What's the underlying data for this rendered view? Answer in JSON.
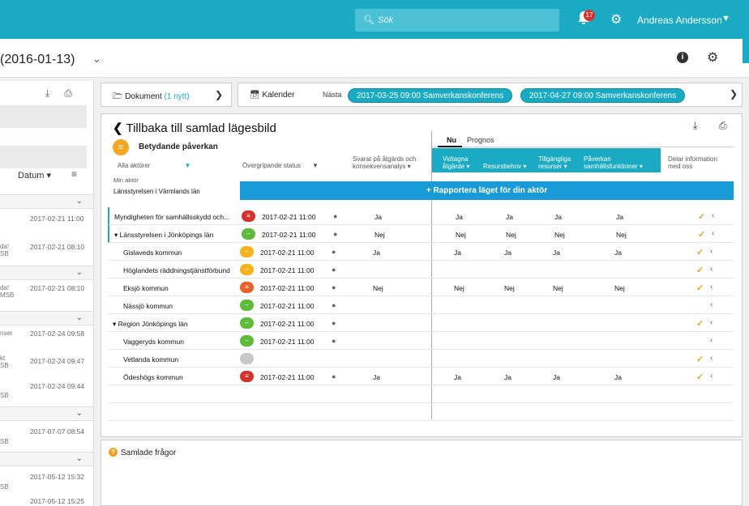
{
  "topbar": {
    "search_placeholder": "Sök",
    "notif_count": "17",
    "user": "Andreas Andersson"
  },
  "title": {
    "text": "(2016-01-13)"
  },
  "left": {
    "sort_label": "Datum ▾",
    "items": [
      {
        "left": "",
        "date": "2017-02-21 11:00",
        "sub": ""
      },
      {
        "left": "da!",
        "date": "2017-02-21 08:10",
        "sub": "SB"
      },
      {
        "left": "da!",
        "date": "2017-02-21 08:10",
        "sub": "MSB"
      },
      {
        "left": "nser",
        "date": "2017-02-24 09:58",
        "sub": ""
      },
      {
        "left": "kt",
        "date": "2017-02-24 09:47",
        "sub": "SB"
      },
      {
        "left": "",
        "date": "2017-02-24 09:44",
        "sub": "SB"
      },
      {
        "left": "",
        "date": "2017-07-07 08:54",
        "sub": "SB"
      },
      {
        "left": "",
        "date": "2017-05-12 15:32",
        "sub": "SB"
      },
      {
        "left": "",
        "date": "2017-05-12 15:25",
        "sub": ""
      }
    ]
  },
  "cards": {
    "dokument": "Dokument",
    "dokument_new": "(1 nytt)",
    "kalender": "Kalender",
    "nasta": "Nästa",
    "event1": "2017-03-25 09:00 Samverkanskonferens",
    "event2": "2017-04-27 09:00 Samverkanskonferens"
  },
  "main": {
    "back": "Tillbaka till samlad lägesbild",
    "impact": "Betydande påverkan",
    "tab_now": "Nu",
    "tab_forecast": "Prognos",
    "hdr_actors": "Alla aktörer",
    "hdr_status": "Övergripande status",
    "hdr_answered1": "Svarat på åtgärds och",
    "hdr_answered2": "konsekvensanalys ▾",
    "hdr_actions1": "Vidtagna",
    "hdr_actions2": "åtgärde ▾",
    "hdr_resource": "Resursbehov ▾",
    "hdr_avail1": "Tillgängliga",
    "hdr_avail2": "resurser ▾",
    "hdr_impact1": "Påverkan",
    "hdr_impact2": "samhällsfunktioner ▾",
    "hdr_share1": "Delar information",
    "hdr_share2": "med oss",
    "my_actor_label": "Min aktör",
    "my_actor": "Länsstyrelsen i Värmlands län",
    "report": "+ Rapportera läget för din aktör"
  },
  "rows": [
    {
      "name": "Myndigheten för samhällsskydd och...",
      "status": "red",
      "time": "2017-02-21 11:00",
      "ans": "Ja",
      "a": "Ja",
      "r": "Ja",
      "t": "Ja",
      "p": "Ja",
      "check": true
    },
    {
      "name": "▾ Länsstyrelsen i Jönköpings län",
      "status": "green",
      "time": "2017-02-21 11:00",
      "ans": "Nej",
      "a": "Nej",
      "r": "Nej",
      "t": "Nej",
      "p": "Nej",
      "check": true
    },
    {
      "name": "Gislaveds kommun",
      "status": "yellow",
      "time": "2017-02-21 11:00",
      "ans": "Ja",
      "a": "Ja",
      "r": "Ja",
      "t": "Ja",
      "p": "Ja",
      "check": true
    },
    {
      "name": "Höglandets räddningstjänstförbund",
      "status": "yellow",
      "time": "2017-02-21 11:00",
      "ans": "",
      "a": "",
      "r": "",
      "t": "",
      "p": "",
      "check": true
    },
    {
      "name": "Eksjö kommun",
      "status": "orange",
      "time": "2017-02-21 11:00",
      "ans": "Nej",
      "a": "Nej",
      "r": "Nej",
      "t": "Nej",
      "p": "Nej",
      "check": true
    },
    {
      "name": "Nässjö kommun",
      "status": "green",
      "time": "2017-02-21 11:00",
      "ans": "",
      "a": "",
      "r": "",
      "t": "",
      "p": "",
      "check": false
    },
    {
      "name": "▾ Region Jönköpings län",
      "status": "green",
      "time": "2017-02-21 11:00",
      "ans": "",
      "a": "",
      "r": "",
      "t": "",
      "p": "",
      "check": true
    },
    {
      "name": "Vaggeryds kommun",
      "status": "green",
      "time": "2017-02-21 11:00",
      "ans": "",
      "a": "",
      "r": "",
      "t": "",
      "p": "",
      "check": false
    },
    {
      "name": "Vetlanda kommun",
      "status": "grey",
      "time": "",
      "ans": "",
      "a": "",
      "r": "",
      "t": "",
      "p": "",
      "check": true
    },
    {
      "name": "Ödeshögs kommun",
      "status": "red",
      "time": "2017-02-21 11:00",
      "ans": "Ja",
      "a": "Ja",
      "r": "Ja",
      "t": "Ja",
      "p": "Ja",
      "check": true
    }
  ],
  "bottom": {
    "label": "Samlade frågor"
  },
  "colors": {
    "accent": "#1aaac3",
    "report": "#189bd6",
    "check": "#f0a020"
  }
}
